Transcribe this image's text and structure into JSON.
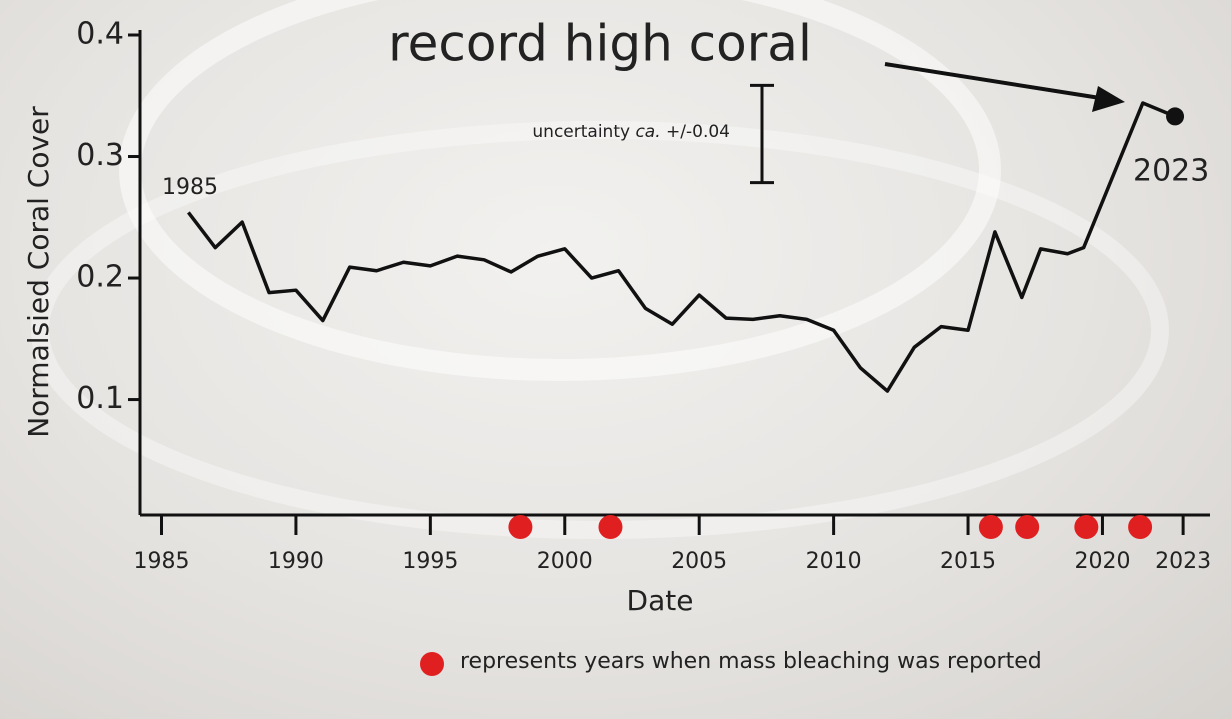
{
  "chart_data": {
    "type": "line",
    "x_label": "Date",
    "y_label": "Normalsied Coral Cover",
    "annotations": {
      "headline": "record high coral",
      "start": "1985",
      "end": "2023"
    },
    "uncertainty": {
      "text": "uncertainty",
      "italic": "ca.",
      "value_label": "+/-0.04",
      "value": 0.04
    },
    "x": [
      1986,
      1987,
      1988,
      1989,
      1990,
      1991,
      1992,
      1993,
      1994,
      1995,
      1996,
      1997,
      1998,
      1999,
      2000,
      2001,
      2002,
      2003,
      2004,
      2005,
      2006,
      2007,
      2008,
      2009,
      2010,
      2011,
      2012,
      2013,
      2014,
      2015,
      2016,
      2017,
      2017.7,
      2018.7,
      2019.3,
      2021.5,
      2022.7
    ],
    "series": [
      {
        "name": "Normalised coral cover",
        "color": "#111111",
        "values": [
          0.254,
          0.225,
          0.246,
          0.188,
          0.19,
          0.165,
          0.209,
          0.206,
          0.213,
          0.21,
          0.218,
          0.215,
          0.205,
          0.218,
          0.224,
          0.2,
          0.206,
          0.175,
          0.162,
          0.186,
          0.167,
          0.166,
          0.169,
          0.166,
          0.157,
          0.126,
          0.107,
          0.143,
          0.16,
          0.157,
          0.238,
          0.184,
          0.224,
          0.22,
          0.225,
          0.344,
          0.333
        ]
      }
    ],
    "bleaching": {
      "label": "represents years when mass bleaching was reported",
      "color": "#e02020",
      "x": [
        1998.35,
        2001.7,
        2015.85,
        2017.2,
        2019.4,
        2021.4
      ]
    },
    "xlim": [
      1984.2,
      2024
    ],
    "ylim": [
      0.005,
      0.4
    ],
    "xticks": [
      1985,
      1990,
      1995,
      2000,
      2005,
      2010,
      2015,
      2020,
      2023
    ],
    "yticks": [
      0.1,
      0.2,
      0.3,
      0.4
    ]
  }
}
